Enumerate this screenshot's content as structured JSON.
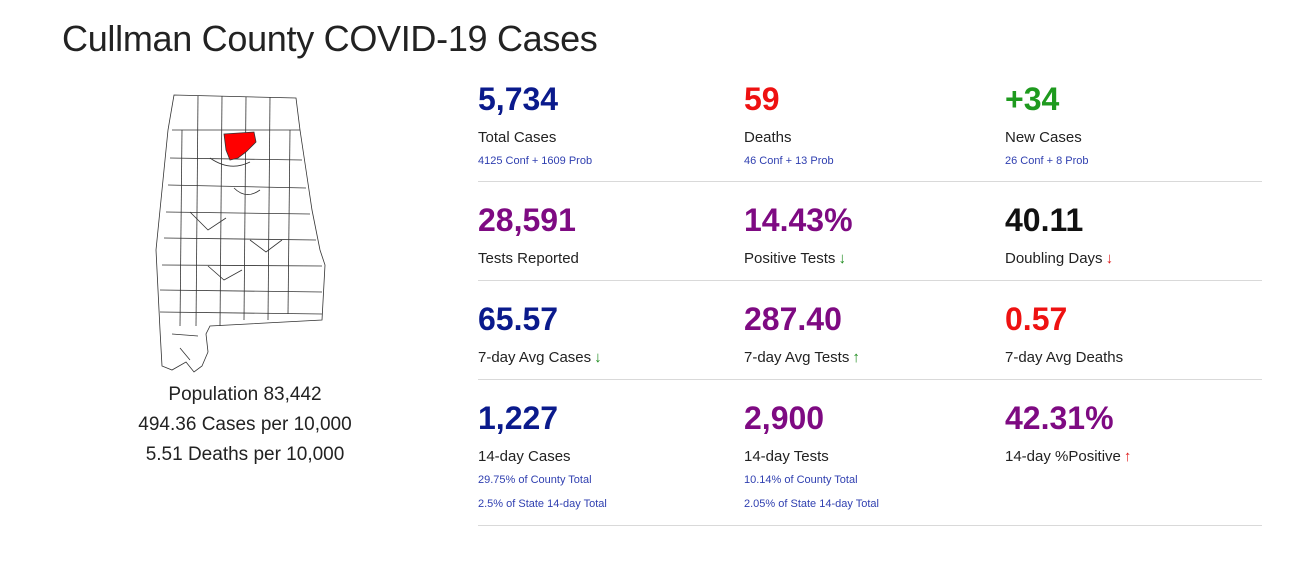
{
  "title": "Cullman County COVID-19 Cases",
  "map": {
    "highlight_color": "#ff0000",
    "outline_color": "#333333"
  },
  "county_info": {
    "population": "Population 83,442",
    "cases_per": "494.36 Cases per 10,000",
    "deaths_per": "5.51 Deaths per 10,000"
  },
  "colors": {
    "navy": "#0a1a8c",
    "purple": "#7e0a82",
    "red": "#ee1111",
    "green": "#1e9a1e",
    "black": "#111111",
    "link_blue": "#2f3fb0"
  },
  "stats": {
    "total_cases": {
      "value": "5,734",
      "label": "Total Cases",
      "sub1": "4125 Conf + 1609 Prob"
    },
    "deaths": {
      "value": "59",
      "label": "Deaths",
      "sub1": "46 Conf + 13 Prob"
    },
    "new_cases": {
      "value": "+34",
      "label": "New Cases",
      "sub1": "26 Conf + 8 Prob"
    },
    "tests_reported": {
      "value": "28,591",
      "label": "Tests Reported"
    },
    "positive_tests": {
      "value": "14.43%",
      "label": "Positive Tests",
      "trend": "down",
      "trend_icon": "arrow-down-icon"
    },
    "doubling_days": {
      "value": "40.11",
      "label": "Doubling Days",
      "trend": "down",
      "trend_icon": "arrow-down-icon"
    },
    "avg7_cases": {
      "value": "65.57",
      "label": "7-day Avg Cases",
      "trend": "down",
      "trend_icon": "arrow-down-icon"
    },
    "avg7_tests": {
      "value": "287.40",
      "label": "7-day Avg Tests",
      "trend": "up",
      "trend_icon": "arrow-up-icon"
    },
    "avg7_deaths": {
      "value": "0.57",
      "label": "7-day Avg Deaths"
    },
    "d14_cases": {
      "value": "1,227",
      "label": "14-day Cases",
      "sub1": "29.75% of County Total",
      "sub2": "2.5% of State 14-day Total"
    },
    "d14_tests": {
      "value": "2,900",
      "label": "14-day Tests",
      "sub1": "10.14% of County Total",
      "sub2": "2.05% of State 14-day Total"
    },
    "d14_positive": {
      "value": "42.31%",
      "label": "14-day %Positive",
      "trend": "up",
      "trend_icon": "arrow-up-icon"
    }
  }
}
